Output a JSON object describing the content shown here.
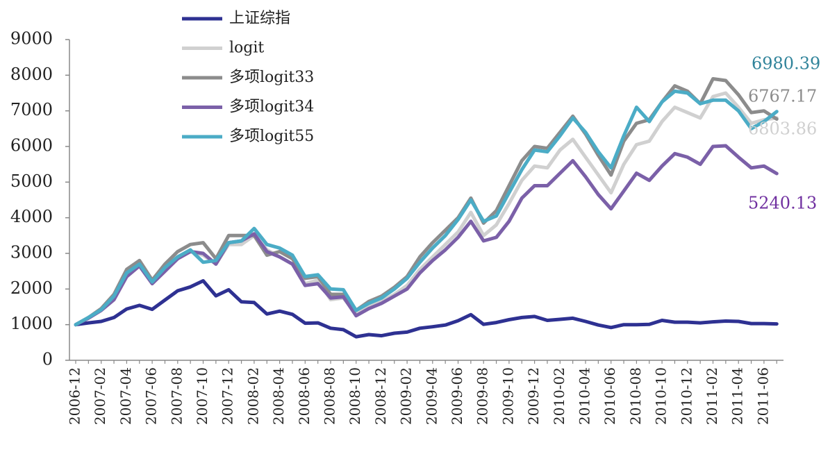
{
  "chart_data": {
    "type": "line",
    "title": "",
    "xlabel": "",
    "ylabel": "",
    "ylim": [
      0,
      9000
    ],
    "yticks": [
      0,
      1000,
      2000,
      3000,
      4000,
      5000,
      6000,
      7000,
      8000,
      9000
    ],
    "grid": false,
    "legend_position": "top-left",
    "x": [
      "2006-12",
      "2007-01",
      "2007-02",
      "2007-03",
      "2007-04",
      "2007-05",
      "2007-06",
      "2007-07",
      "2007-08",
      "2007-09",
      "2007-10",
      "2007-11",
      "2007-12",
      "2008-01",
      "2008-02",
      "2008-03",
      "2008-04",
      "2008-05",
      "2008-06",
      "2008-07",
      "2008-08",
      "2008-09",
      "2008-10",
      "2008-11",
      "2008-12",
      "2009-01",
      "2009-02",
      "2009-03",
      "2009-04",
      "2009-05",
      "2009-06",
      "2009-07",
      "2009-08",
      "2009-09",
      "2009-10",
      "2009-11",
      "2009-12",
      "2010-01",
      "2010-02",
      "2010-03",
      "2010-04",
      "2010-05",
      "2010-06",
      "2010-07",
      "2010-08",
      "2010-09",
      "2010-10",
      "2010-11",
      "2010-12",
      "2011-01",
      "2011-02",
      "2011-03",
      "2011-04",
      "2011-05",
      "2011-06",
      "2011-07"
    ],
    "tick_labels": [
      "2006-12",
      "2007-02",
      "2007-04",
      "2007-06",
      "2007-08",
      "2007-10",
      "2007-12",
      "2008-02",
      "2008-04",
      "2008-06",
      "2008-08",
      "2008-10",
      "2008-12",
      "2009-02",
      "2009-04",
      "2009-06",
      "2009-08",
      "2009-10",
      "2009-12",
      "2010-02",
      "2010-04",
      "2010-06",
      "2010-08",
      "2010-10",
      "2010-12",
      "2011-02",
      "2011-04",
      "2011-06"
    ],
    "series": [
      {
        "name": "上证综指",
        "color": "#2e3192",
        "values": [
          1000,
          1050,
          1090,
          1200,
          1440,
          1540,
          1430,
          1690,
          1950,
          2060,
          2230,
          1810,
          1980,
          1640,
          1620,
          1300,
          1380,
          1290,
          1040,
          1050,
          900,
          860,
          660,
          720,
          690,
          760,
          790,
          900,
          940,
          990,
          1110,
          1280,
          1010,
          1060,
          1140,
          1200,
          1230,
          1120,
          1150,
          1180,
          1090,
          990,
          920,
          1000,
          1000,
          1010,
          1120,
          1070,
          1070,
          1050,
          1080,
          1100,
          1090,
          1030,
          1030,
          1020
        ]
      },
      {
        "name": "logit",
        "color": "#d0d0d0",
        "values": [
          1000,
          1200,
          1400,
          1750,
          2350,
          2650,
          2150,
          2500,
          2900,
          3050,
          2950,
          2700,
          3250,
          3250,
          3500,
          3100,
          2900,
          2700,
          2150,
          2250,
          1700,
          1750,
          1300,
          1500,
          1650,
          1850,
          2100,
          2550,
          2900,
          3250,
          3600,
          4150,
          3500,
          3800,
          4400,
          5050,
          5450,
          5400,
          5900,
          6200,
          5700,
          5200,
          4700,
          5500,
          6050,
          6150,
          6700,
          7100,
          6950,
          6800,
          7400,
          7500,
          7100,
          6650,
          6750,
          6800
        ]
      },
      {
        "name": "多项logit33",
        "color": "#8c8c8c",
        "values": [
          1000,
          1200,
          1450,
          1850,
          2550,
          2800,
          2250,
          2700,
          3050,
          3250,
          3300,
          2850,
          3500,
          3500,
          3500,
          2950,
          3050,
          2850,
          2300,
          2350,
          1850,
          1850,
          1400,
          1650,
          1800,
          2050,
          2350,
          2900,
          3300,
          3650,
          4000,
          4550,
          3850,
          4200,
          4900,
          5600,
          6000,
          5950,
          6400,
          6850,
          6350,
          5750,
          5200,
          6150,
          6650,
          6750,
          7250,
          7700,
          7550,
          7200,
          7900,
          7850,
          7450,
          6950,
          7000,
          6770
        ]
      },
      {
        "name": "多项logit34",
        "color": "#7b60a8",
        "values": [
          1000,
          1180,
          1400,
          1700,
          2350,
          2650,
          2150,
          2500,
          2850,
          3050,
          3000,
          2700,
          3300,
          3350,
          3550,
          3050,
          2900,
          2700,
          2100,
          2150,
          1750,
          1780,
          1250,
          1450,
          1600,
          1800,
          2000,
          2450,
          2800,
          3100,
          3450,
          3900,
          3350,
          3450,
          3900,
          4550,
          4900,
          4900,
          5250,
          5600,
          5150,
          4650,
          4250,
          4750,
          5250,
          5050,
          5450,
          5800,
          5700,
          5500,
          6000,
          6020,
          5700,
          5400,
          5450,
          5240
        ]
      },
      {
        "name": "多项logit55",
        "color": "#4bacc6",
        "values": [
          1000,
          1200,
          1420,
          1800,
          2450,
          2700,
          2200,
          2600,
          2900,
          3100,
          2750,
          2800,
          3300,
          3350,
          3700,
          3250,
          3150,
          2950,
          2350,
          2400,
          2000,
          1980,
          1400,
          1600,
          1750,
          2000,
          2300,
          2750,
          3150,
          3500,
          3950,
          4500,
          3900,
          4050,
          4700,
          5350,
          5900,
          5850,
          6300,
          6800,
          6400,
          5850,
          5400,
          6300,
          7100,
          6700,
          7250,
          7550,
          7500,
          7200,
          7300,
          7300,
          7000,
          6500,
          6700,
          6980
        ]
      }
    ],
    "end_labels": [
      {
        "series": "多项logit55",
        "text": "6980.39",
        "color": "#31849b"
      },
      {
        "series": "多项logit33",
        "text": "6767.17",
        "color": "#8c8c8c"
      },
      {
        "series": "logit",
        "text": "6803.86",
        "color": "#d0d0d0"
      },
      {
        "series": "多项logit34",
        "text": "5240.13",
        "color": "#7030a0"
      }
    ]
  }
}
